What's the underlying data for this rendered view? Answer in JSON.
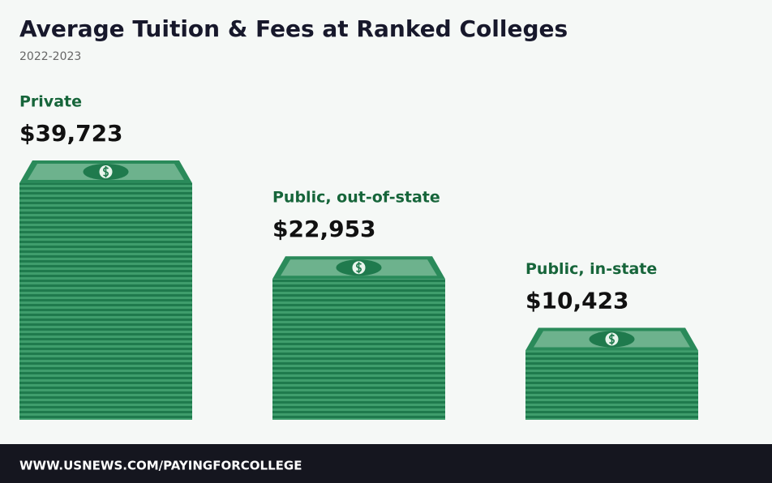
{
  "chart_data": {
    "type": "bar",
    "title": "Average Tuition & Fees at Ranked Colleges",
    "subtitle": "2022-2023",
    "categories": [
      "Private",
      "Public, out-of-state",
      "Public, in-state"
    ],
    "values": [
      39723,
      22953,
      10423
    ],
    "value_labels": [
      "$39,723",
      "$22,953",
      "$10,423"
    ],
    "color": "#2a8a5a",
    "footer": "WWW.USNEWS.COM/PAYINGFORCOLLEGE"
  }
}
